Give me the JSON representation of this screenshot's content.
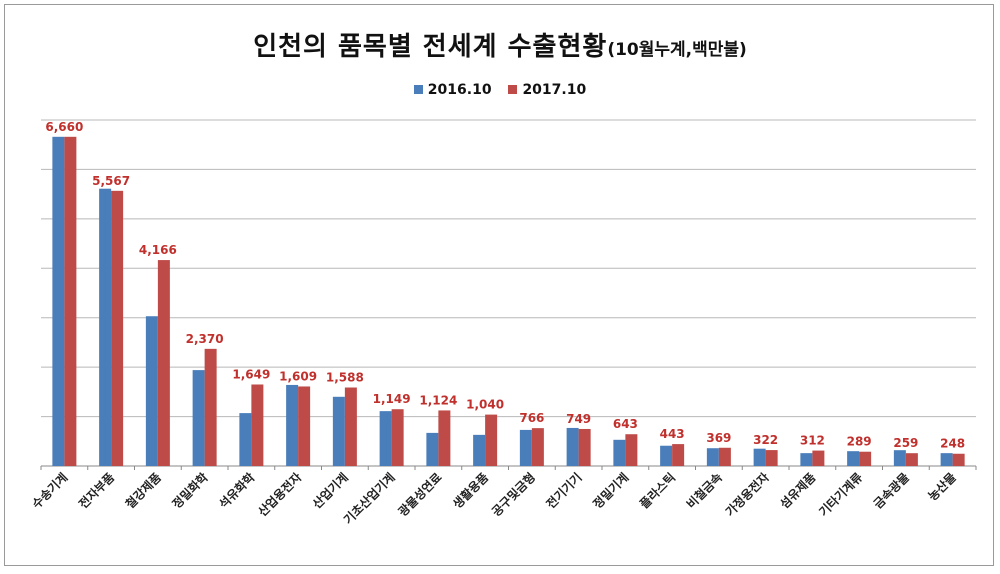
{
  "chart_data": {
    "type": "bar",
    "title": "인천의 품목별 전세계 수출현황",
    "subtitle": "(10월누계,백만불)",
    "categories": [
      "수송기계",
      "전자부품",
      "철강제품",
      "정밀화학",
      "석유화학",
      "산업용전자",
      "산업기계",
      "기초산업기계",
      "광물성연료",
      "생활용품",
      "공구및금형",
      "전기기기",
      "정밀기계",
      "플라스틱",
      "비철금속",
      "가정용전자",
      "섬유제품",
      "기타기계류",
      "금속광물",
      "농산물"
    ],
    "series": [
      {
        "name": "2016.10",
        "color": "#4a7ebb",
        "values": [
          6660,
          5610,
          3030,
          1940,
          1070,
          1640,
          1400,
          1110,
          670,
          630,
          730,
          770,
          530,
          410,
          360,
          350,
          260,
          300,
          320,
          260
        ]
      },
      {
        "name": "2017.10",
        "color": "#be4b48",
        "values": [
          6660,
          5567,
          4166,
          2370,
          1649,
          1609,
          1588,
          1149,
          1124,
          1040,
          766,
          749,
          643,
          443,
          369,
          322,
          312,
          289,
          259,
          248
        ]
      }
    ],
    "data_labels": [
      "6,660",
      "5,567",
      "4,166",
      "2,370",
      "1,649",
      "1,609",
      "1,588",
      "1,149",
      "1,124",
      "1,040",
      "766",
      "749",
      "643",
      "443",
      "369",
      "322",
      "312",
      "289",
      "259",
      "248"
    ],
    "ylim": [
      0,
      7000
    ],
    "grid": true,
    "legend_position": "top-center",
    "xlabel": "",
    "ylabel": ""
  }
}
